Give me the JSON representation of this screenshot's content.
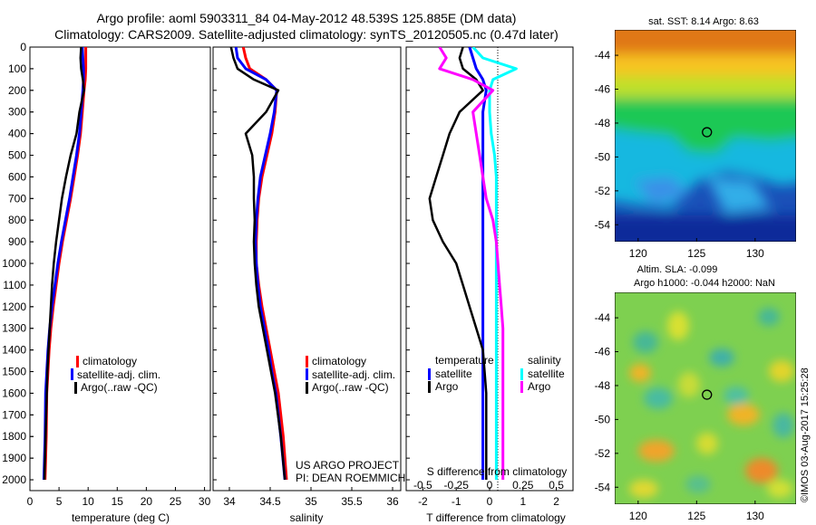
{
  "header": {
    "line1": "Argo profile: aoml 5903311_84 04-May-2012 48.539S 125.885E (DM data)",
    "line2": "Climatology: CARS2009. Satellite-adjusted climatology: synTS_20120505.nc (0.47d later)"
  },
  "colors": {
    "climatology": "#ff0000",
    "satellite": "#0000ff",
    "argo": "#000000",
    "sal_satellite": "#00ffff",
    "sal_argo": "#ff00ff"
  },
  "chart_data": [
    {
      "id": "temperature",
      "type": "line",
      "xlabel": "temperature (deg C)",
      "xlim": [
        0,
        31
      ],
      "xticks": [
        0,
        5,
        10,
        15,
        20,
        25,
        30
      ],
      "ylim": [
        0,
        2050
      ],
      "yinvert": true,
      "yticks": [
        0,
        100,
        200,
        300,
        400,
        500,
        600,
        700,
        800,
        900,
        1000,
        1100,
        1200,
        1300,
        1400,
        1500,
        1600,
        1700,
        1800,
        1900,
        2000
      ],
      "legend": [
        "climatology",
        "satellite-adj. clim.",
        "Argo(..raw -QC)"
      ],
      "series": [
        {
          "name": "climatology",
          "color": "#ff0000",
          "width": 3,
          "x": [
            9.6,
            9.6,
            9.6,
            9.5,
            9.3,
            9.0,
            8.7,
            8.2,
            7.6,
            7.0,
            6.3,
            5.6,
            5.0,
            4.5,
            4.0,
            3.6,
            3.3,
            3.1,
            2.9,
            2.8,
            2.6
          ],
          "y": [
            0,
            50,
            100,
            150,
            200,
            300,
            400,
            500,
            600,
            700,
            800,
            900,
            1000,
            1100,
            1200,
            1300,
            1400,
            1500,
            1600,
            1800,
            2000
          ]
        },
        {
          "name": "satellite-adj. clim.",
          "color": "#0000ff",
          "width": 3,
          "x": [
            9.0,
            9.1,
            9.2,
            9.2,
            9.1,
            8.8,
            8.5,
            8.0,
            7.4,
            6.8,
            6.1,
            5.4,
            4.8,
            4.3,
            3.8,
            3.4,
            3.1,
            2.9,
            2.7,
            2.6,
            2.4
          ],
          "y": [
            0,
            50,
            100,
            150,
            200,
            300,
            400,
            500,
            600,
            700,
            800,
            900,
            1000,
            1100,
            1200,
            1300,
            1400,
            1500,
            1600,
            1800,
            2000
          ]
        },
        {
          "name": "Argo(..raw -QC)",
          "color": "#000000",
          "width": 2.5,
          "x": [
            8.8,
            8.7,
            8.8,
            9.1,
            9.3,
            8.5,
            8.0,
            7.0,
            6.2,
            5.5,
            5.0,
            4.5,
            4.1,
            3.8,
            3.6,
            3.4,
            3.2,
            3.0,
            2.9,
            2.7,
            2.5
          ],
          "y": [
            0,
            50,
            100,
            150,
            200,
            300,
            400,
            500,
            600,
            700,
            800,
            900,
            1000,
            1100,
            1200,
            1300,
            1400,
            1500,
            1600,
            1800,
            2000
          ]
        }
      ]
    },
    {
      "id": "salinity",
      "type": "line",
      "xlabel": "salinity",
      "xlim": [
        33.8,
        36.1
      ],
      "xticks": [
        34,
        34.5,
        35,
        35.5,
        36
      ],
      "ylim": [
        0,
        2050
      ],
      "yinvert": true,
      "legend": [
        "climatology",
        "satellite-adj. clim.",
        "Argo(..raw -QC)"
      ],
      "series": [
        {
          "name": "climatology",
          "color": "#ff0000",
          "width": 3,
          "x": [
            34.17,
            34.2,
            34.25,
            34.45,
            34.58,
            34.56,
            34.52,
            34.46,
            34.4,
            34.36,
            34.34,
            34.33,
            34.33,
            34.36,
            34.4,
            34.45,
            34.5,
            34.55,
            34.6,
            34.66,
            34.7
          ],
          "y": [
            0,
            50,
            100,
            150,
            200,
            300,
            400,
            500,
            600,
            700,
            800,
            900,
            1000,
            1100,
            1200,
            1300,
            1400,
            1500,
            1600,
            1800,
            2000
          ]
        },
        {
          "name": "satellite-adj. clim.",
          "color": "#0000ff",
          "width": 3,
          "x": [
            34.08,
            34.1,
            34.2,
            34.45,
            34.58,
            34.55,
            34.5,
            34.44,
            34.38,
            34.35,
            34.33,
            34.32,
            34.33,
            34.35,
            34.38,
            34.43,
            34.48,
            34.52,
            34.57,
            34.63,
            34.68
          ],
          "y": [
            0,
            50,
            100,
            150,
            200,
            300,
            400,
            500,
            600,
            700,
            800,
            900,
            1000,
            1100,
            1200,
            1300,
            1400,
            1500,
            1600,
            1800,
            2000
          ]
        },
        {
          "name": "Argo(..raw -QC)",
          "color": "#000000",
          "width": 2.5,
          "x": [
            34.02,
            34.05,
            34.1,
            34.3,
            34.6,
            34.45,
            34.2,
            34.28,
            34.3,
            34.3,
            34.31,
            34.3,
            34.31,
            34.33,
            34.36,
            34.41,
            34.46,
            34.51,
            34.56,
            34.63,
            34.68
          ],
          "y": [
            0,
            50,
            100,
            150,
            200,
            300,
            400,
            500,
            600,
            700,
            800,
            900,
            1000,
            1100,
            1200,
            1300,
            1400,
            1500,
            1600,
            1800,
            2000
          ]
        }
      ],
      "annotation": [
        "US ARGO PROJECT",
        "PI: DEAN ROEMMICH"
      ]
    },
    {
      "id": "differences",
      "type": "line",
      "xlabel": "T difference from climatology",
      "top_xlabel": "S difference from climatology",
      "xlim": [
        -2.5,
        2.5
      ],
      "xticks": [
        -2,
        -1,
        0,
        1,
        2
      ],
      "sxticks": [
        "-0.5",
        "-0.25",
        "0",
        "0.25",
        "0.5"
      ],
      "ylim": [
        0,
        2050
      ],
      "yinvert": true,
      "legend_temperature_title": "temperature",
      "legend_salinity_title": "salinity",
      "legend_labels": [
        "satellite",
        "Argo"
      ],
      "series": [
        {
          "name": "satellite",
          "group": "temperature",
          "color": "#0000ff",
          "width": 3,
          "x": [
            -0.6,
            -0.5,
            -0.4,
            -0.2,
            -0.1,
            -0.2,
            -0.2,
            -0.2,
            -0.2,
            -0.2,
            -0.2,
            -0.2,
            -0.2,
            -0.2,
            -0.2,
            -0.2,
            -0.2,
            -0.2,
            -0.2,
            -0.2,
            -0.2
          ],
          "y": [
            0,
            50,
            100,
            150,
            200,
            300,
            400,
            500,
            600,
            700,
            800,
            900,
            1000,
            1100,
            1200,
            1300,
            1400,
            1500,
            1600,
            1800,
            2000
          ]
        },
        {
          "name": "Argo",
          "group": "temperature",
          "color": "#000000",
          "width": 2.5,
          "x": [
            -0.8,
            -0.9,
            -0.8,
            -0.4,
            -0.2,
            -0.9,
            -1.2,
            -1.4,
            -1.6,
            -1.8,
            -1.7,
            -1.4,
            -1.0,
            -0.8,
            -0.6,
            -0.4,
            -0.2,
            -0.15,
            -0.1,
            -0.1,
            -0.1
          ],
          "y": [
            0,
            50,
            100,
            150,
            200,
            300,
            400,
            500,
            600,
            700,
            800,
            900,
            1000,
            1100,
            1200,
            1300,
            1400,
            1500,
            1600,
            1800,
            2000
          ]
        },
        {
          "name": "satellite",
          "group": "salinity",
          "color": "#00ffff",
          "width": 3,
          "x": [
            -0.5,
            -0.2,
            0.8,
            0.1,
            0.0,
            0.0,
            0.05,
            0.15,
            0.2,
            0.2,
            0.2,
            0.2,
            0.2,
            0.2,
            0.2,
            0.2,
            0.2,
            0.2,
            0.2,
            0.2,
            0.2
          ],
          "y": [
            0,
            50,
            100,
            150,
            200,
            300,
            400,
            500,
            600,
            700,
            800,
            900,
            1000,
            1100,
            1200,
            1300,
            1400,
            1500,
            1600,
            1800,
            2000
          ]
        },
        {
          "name": "Argo",
          "group": "salinity",
          "color": "#ff00ff",
          "width": 3,
          "x": [
            -1.5,
            -1.3,
            -1.5,
            -0.5,
            0.1,
            -0.5,
            -0.4,
            -0.3,
            -0.2,
            -0.1,
            0.1,
            0.2,
            0.25,
            0.3,
            0.35,
            0.4,
            0.4,
            0.4,
            0.4,
            0.4,
            0.4
          ],
          "y": [
            0,
            50,
            100,
            150,
            200,
            300,
            400,
            500,
            600,
            700,
            800,
            900,
            1000,
            1100,
            1200,
            1300,
            1400,
            1500,
            1600,
            1800,
            2000
          ]
        }
      ]
    },
    {
      "id": "sst-map",
      "type": "heatmap",
      "title": "sat. SST: 8.14 Argo: 8.63",
      "xlim": [
        118,
        133.5
      ],
      "ylim": [
        -55,
        -42.5
      ],
      "xticks": [
        120,
        125,
        130
      ],
      "yticks": [
        -44,
        -46,
        -48,
        -50,
        -52,
        -54
      ],
      "marker": {
        "lon": 125.885,
        "lat": -48.539
      }
    },
    {
      "id": "sla-map",
      "type": "heatmap",
      "title_line1": "Altim. SLA: -0.099",
      "title_line2": "Argo h1000: -0.044 h2000: NaN",
      "xlim": [
        118,
        133.5
      ],
      "ylim": [
        -55,
        -42.5
      ],
      "xticks": [
        120,
        125,
        130
      ],
      "yticks": [
        -44,
        -46,
        -48,
        -50,
        -52,
        -54
      ],
      "marker": {
        "lon": 125.885,
        "lat": -48.539
      }
    }
  ],
  "footer": {
    "credit": "©IMOS 03-Aug-2017 15:25:28"
  }
}
